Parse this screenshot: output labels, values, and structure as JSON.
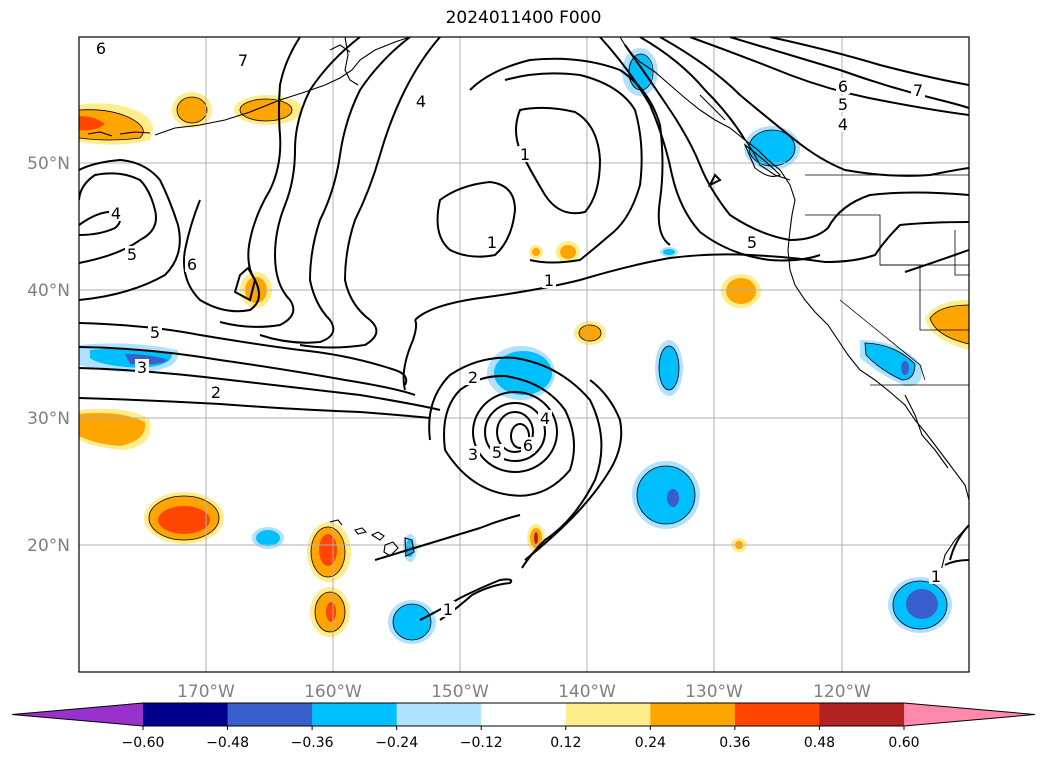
{
  "title": "2024011400 F000",
  "map": {
    "lat_ticks": [
      "50°N",
      "40°N",
      "30°N",
      "20°N"
    ],
    "lon_ticks": [
      "170°W",
      "160°W",
      "150°W",
      "140°W",
      "130°W",
      "120°W"
    ],
    "contour_labels": [
      "6",
      "7",
      "4",
      "1",
      "1",
      "1",
      "5",
      "6",
      "5",
      "4",
      "6",
      "4",
      "5",
      "5",
      "3",
      "2",
      "1",
      "2",
      "4",
      "3",
      "5",
      "6",
      "1",
      "7",
      "5",
      "1",
      "1"
    ]
  },
  "colorbar": {
    "ticks": [
      "−0.60",
      "−0.48",
      "−0.36",
      "−0.24",
      "−0.12",
      "0.12",
      "0.24",
      "0.36",
      "0.48",
      "0.60"
    ],
    "colors": [
      "#9932cc",
      "#00008b",
      "#3a5fcd",
      "#00bfff",
      "#b0e2ff",
      "#ffffff",
      "#ffec8b",
      "#ffa500",
      "#ff4500",
      "#b22222",
      "#ff89ab"
    ]
  }
}
